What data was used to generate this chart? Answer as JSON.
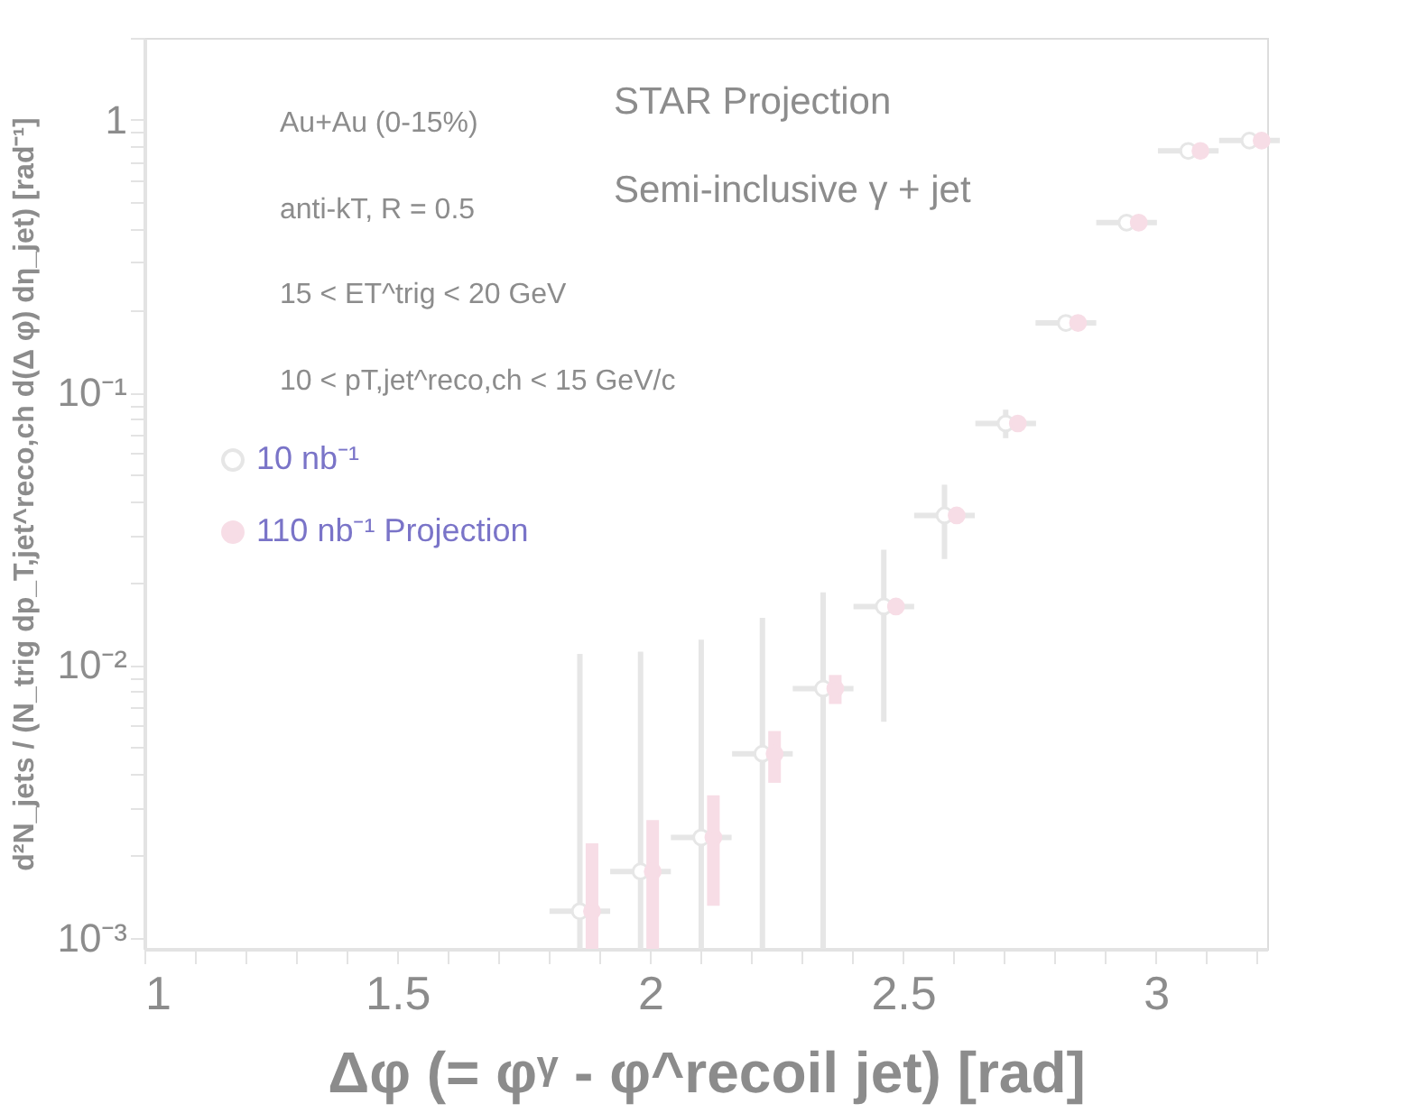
{
  "chart_data": {
    "type": "scatter",
    "xlabel": "Δφ (= φᵞ - φ^recoil jet) [rad]",
    "ylabel": "d²N_jets / (N_trig dp_T,jet^reco,ch d(Δ φ) dη_jet) [rad⁻¹]",
    "annotations": [
      "Au+Au (0-15%)",
      "anti-kT, R = 0.5",
      "15 < ET^trig < 20 GeV",
      "10 < pT,jet^reco,ch < 15 GeV/c",
      "STAR Projection",
      "Semi-inclusive γ + jet"
    ],
    "xlim": [
      1,
      3.22
    ],
    "xticks": [
      1,
      {
        "value": 1.1,
        "label": null
      },
      {
        "value": 1.2,
        "label": null
      },
      {
        "value": 1.3,
        "label": null
      },
      {
        "value": 1.4,
        "label": null
      },
      1.5,
      {
        "value": 1.6,
        "label": null
      },
      {
        "value": 1.7,
        "label": null
      },
      {
        "value": 1.8,
        "label": null
      },
      {
        "value": 1.9,
        "label": null
      },
      2,
      {
        "value": 2.1,
        "label": null
      },
      {
        "value": 2.2,
        "label": null
      },
      {
        "value": 2.3,
        "label": null
      },
      {
        "value": 2.4,
        "label": null
      },
      2.5,
      {
        "value": 2.6,
        "label": null
      },
      {
        "value": 2.7,
        "label": null
      },
      {
        "value": 2.8,
        "label": null
      },
      {
        "value": 2.9,
        "label": null
      },
      3,
      {
        "value": 3.1,
        "label": null
      },
      {
        "value": 3.2,
        "label": null
      }
    ],
    "ylim": [
      0.00091,
      2
    ],
    "yticks": [
      {
        "value": 0.001,
        "label": "10⁻³"
      },
      {
        "value": 0.002,
        "label": null
      },
      {
        "value": 0.003,
        "label": null
      },
      {
        "value": 0.004,
        "label": null
      },
      {
        "value": 0.005,
        "label": null
      },
      {
        "value": 0.006,
        "label": null
      },
      {
        "value": 0.007,
        "label": null
      },
      {
        "value": 0.008,
        "label": null
      },
      {
        "value": 0.009,
        "label": null
      },
      {
        "value": 0.01,
        "label": "10⁻²"
      },
      {
        "value": 0.02,
        "label": null
      },
      {
        "value": 0.03,
        "label": null
      },
      {
        "value": 0.04,
        "label": null
      },
      {
        "value": 0.05,
        "label": null
      },
      {
        "value": 0.06,
        "label": null
      },
      {
        "value": 0.07,
        "label": null
      },
      {
        "value": 0.08,
        "label": null
      },
      {
        "value": 0.09,
        "label": null
      },
      {
        "value": 0.1,
        "label": "10⁻¹"
      },
      {
        "value": 0.2,
        "label": null
      },
      {
        "value": 0.3,
        "label": null
      },
      {
        "value": 0.4,
        "label": null
      },
      {
        "value": 0.5,
        "label": null
      },
      {
        "value": 0.6,
        "label": null
      },
      {
        "value": 0.7,
        "label": null
      },
      {
        "value": 0.8,
        "label": null
      },
      {
        "value": 0.9,
        "label": null
      },
      1,
      {
        "value": 2,
        "label": null
      }
    ],
    "log": "y",
    "grid": false,
    "legend": "left",
    "marker": "circle",
    "series": [
      {
        "name": "10 nb⁻¹",
        "color": "#e6e6e6",
        "x": [
          1.861,
          1.981,
          2.101,
          2.222,
          2.342,
          2.462,
          2.582,
          2.703,
          2.822,
          2.942,
          3.064,
          3.185
        ],
        "values": [
          0.00125,
          0.00175,
          0.00233,
          0.00473,
          0.0082,
          0.0164,
          0.0354,
          0.077,
          0.18,
          0.42,
          0.77,
          0.84
        ],
        "errors": [
          [
            0.00091,
            0.011
          ],
          [
            0.00091,
            0.0112
          ],
          [
            0.00091,
            0.0124
          ],
          [
            0.00091,
            0.0149
          ],
          [
            0.00091,
            0.0185
          ],
          [
            0.0062,
            0.0265
          ],
          [
            0.0245,
            0.0459
          ],
          [
            0.068,
            0.0865
          ],
          null,
          null,
          null,
          null
        ],
        "xerrors": [
          0.06,
          0.06,
          0.06,
          0.06,
          0.06,
          0.06,
          0.06,
          0.06,
          0.06,
          0.06,
          0.06,
          0.06
        ]
      },
      {
        "name": "110 nb⁻¹ Projection",
        "color": "#f7dde6",
        "x": [
          1.885,
          2.005,
          2.125,
          2.246,
          2.366,
          2.486,
          2.606,
          2.727,
          2.846,
          2.966,
          3.088,
          3.209
        ],
        "values": [
          0.00125,
          0.00175,
          0.00233,
          0.00473,
          0.0082,
          0.0164,
          0.0354,
          0.077,
          0.18,
          0.42,
          0.77,
          0.84
        ],
        "errors": [
          [
            0.00091,
            0.00222
          ],
          [
            0.00091,
            0.0027
          ],
          [
            0.00131,
            0.00333
          ],
          [
            0.0037,
            0.00573
          ],
          [
            0.0072,
            0.0092
          ],
          null,
          null,
          null,
          null,
          null,
          null,
          null
        ]
      }
    ]
  }
}
